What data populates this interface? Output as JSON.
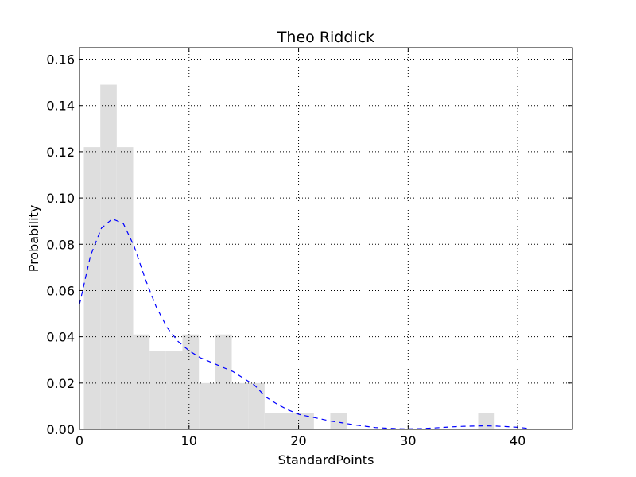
{
  "chart_data": {
    "type": "bar",
    "title": "Theo Riddick",
    "xlabel": "StandardPoints",
    "ylabel": "Probability",
    "xlim": [
      0,
      45
    ],
    "ylim": [
      0,
      0.165
    ],
    "x_ticks": [
      0,
      10,
      20,
      30,
      40
    ],
    "x_tick_labels": [
      "0",
      "10",
      "20",
      "30",
      "40"
    ],
    "y_ticks": [
      0,
      0.02,
      0.04,
      0.06,
      0.08,
      0.1,
      0.12,
      0.14,
      0.16
    ],
    "y_tick_labels": [
      "0.00",
      "0.02",
      "0.04",
      "0.06",
      "0.08",
      "0.10",
      "0.12",
      "0.14",
      "0.16"
    ],
    "grid": true,
    "colors": {
      "histogram": "#dedede",
      "density": "#0000ff"
    },
    "histogram": {
      "bin_edges": [
        0.4,
        1.9,
        3.4,
        4.9,
        6.4,
        7.9,
        9.4,
        10.9,
        12.4,
        13.9,
        15.4,
        16.9,
        18.4,
        19.9,
        21.4,
        22.9,
        24.4,
        25.9,
        27.4,
        28.9,
        30.4,
        31.9,
        33.4,
        34.9,
        36.4,
        37.9
      ],
      "values": [
        0.122,
        0.149,
        0.122,
        0.041,
        0.034,
        0.034,
        0.041,
        0.02,
        0.041,
        0.02,
        0.02,
        0.007,
        0.007,
        0.007,
        0,
        0.007,
        0,
        0,
        0,
        0,
        0,
        0,
        0,
        0,
        0.007
      ]
    },
    "density": {
      "style": "dashed",
      "x": [
        0,
        1,
        2,
        3,
        4,
        5,
        6,
        7,
        8,
        9,
        10,
        11,
        12,
        13,
        14,
        15,
        16,
        17,
        18,
        19,
        20,
        21,
        22,
        23,
        24,
        25,
        26,
        27,
        28,
        29,
        30,
        31,
        32,
        33,
        34,
        35,
        36,
        37,
        38,
        39,
        40,
        41
      ],
      "y": [
        0.054,
        0.075,
        0.087,
        0.091,
        0.089,
        0.079,
        0.065,
        0.053,
        0.044,
        0.038,
        0.034,
        0.031,
        0.029,
        0.027,
        0.025,
        0.022,
        0.019,
        0.014,
        0.011,
        0.0085,
        0.0065,
        0.0055,
        0.0045,
        0.0035,
        0.0028,
        0.002,
        0.0014,
        0.0008,
        0.0005,
        0.0003,
        0.0002,
        0.0003,
        0.0005,
        0.0008,
        0.0011,
        0.0013,
        0.0014,
        0.0015,
        0.0014,
        0.0012,
        0.0009,
        0.0004
      ]
    }
  }
}
